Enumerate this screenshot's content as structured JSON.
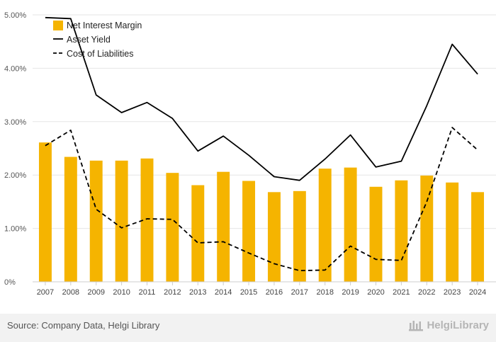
{
  "footer": {
    "source": "Source: Company Data, Helgi Library",
    "brand": "HelgiLibrary"
  },
  "colors": {
    "bar": "#f5b400",
    "line": "#000000",
    "grid": "#e6e6e6",
    "footer_bg": "#f2f2f2"
  },
  "chart_data": {
    "type": "bar",
    "categories": [
      "2007",
      "2008",
      "2009",
      "2010",
      "2011",
      "2012",
      "2013",
      "2014",
      "2015",
      "2016",
      "2017",
      "2018",
      "2019",
      "2020",
      "2021",
      "2022",
      "2023",
      "2024"
    ],
    "ylim": [
      0,
      5
    ],
    "yticks": [
      "0%",
      "1.00%",
      "2.00%",
      "3.00%",
      "4.00%",
      "5.00%"
    ],
    "grid": true,
    "legend": "top-left",
    "series": [
      {
        "name": "Net Interest Margin",
        "kind": "bar",
        "values": [
          2.61,
          2.34,
          2.27,
          2.27,
          2.31,
          2.04,
          1.81,
          2.06,
          1.89,
          1.68,
          1.7,
          2.12,
          2.14,
          1.78,
          1.9,
          1.99,
          1.86,
          1.68
        ]
      },
      {
        "name": "Asset Yield",
        "kind": "line-solid",
        "values": [
          4.95,
          4.93,
          3.5,
          3.17,
          3.36,
          3.06,
          2.45,
          2.73,
          2.37,
          1.97,
          1.9,
          2.3,
          2.75,
          2.15,
          2.26,
          3.3,
          4.45,
          3.89
        ]
      },
      {
        "name": "Cost of Liabilities",
        "kind": "line-dashed",
        "values": [
          2.55,
          2.84,
          1.36,
          1.01,
          1.18,
          1.17,
          0.73,
          0.75,
          0.54,
          0.34,
          0.21,
          0.22,
          0.67,
          0.42,
          0.4,
          1.5,
          2.89,
          2.47
        ]
      }
    ]
  }
}
